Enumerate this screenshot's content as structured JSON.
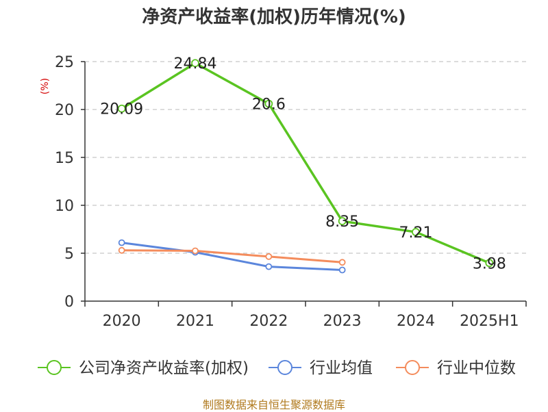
{
  "title": "净资产收益率(加权)历年情况(%)",
  "source": "制图数据来自恒生聚源数据库",
  "chart_data": {
    "type": "line",
    "categories": [
      "2020",
      "2021",
      "2022",
      "2023",
      "2024",
      "2025H1"
    ],
    "ylabel": "(%)",
    "ylim": [
      0,
      25
    ],
    "yticks": [
      0,
      5,
      10,
      15,
      20,
      25
    ],
    "grid": true,
    "legend_position": "bottom",
    "series": [
      {
        "name": "公司净资产收益率(加权)",
        "color": "#5ac421",
        "values": [
          20.09,
          24.84,
          20.6,
          8.35,
          7.21,
          3.98
        ],
        "labels": [
          "20.09",
          "24.84",
          "20.6",
          "8.35",
          "7.21",
          "3.98"
        ]
      },
      {
        "name": "行业均值",
        "color": "#5b86dc",
        "values": [
          6.1,
          5.1,
          3.6,
          3.25,
          null,
          null
        ]
      },
      {
        "name": "行业中位数",
        "color": "#f48c5c",
        "values": [
          5.3,
          5.25,
          4.65,
          4.05,
          null,
          null
        ]
      }
    ]
  }
}
